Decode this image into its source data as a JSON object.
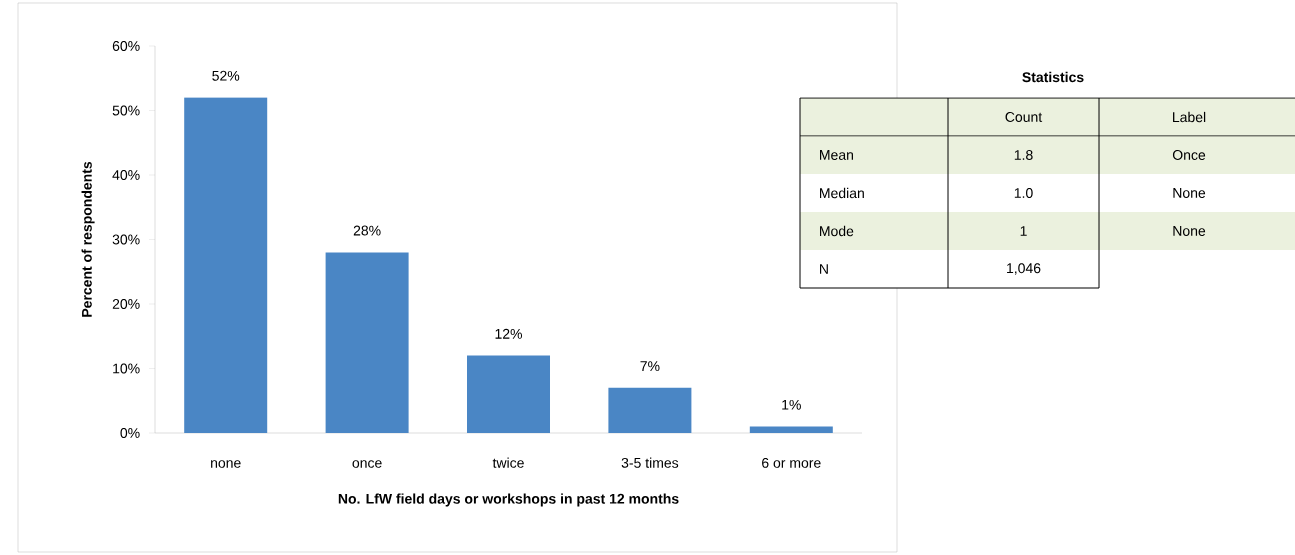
{
  "chart_data": [
    {
      "type": "bar",
      "xlabel": "No. LfW field days or workshops in past 12 months",
      "ylabel": "Percent of respondents",
      "categories": [
        "none",
        "once",
        "twice",
        "3-5 times",
        "6 or more"
      ],
      "values": [
        52,
        28,
        12,
        7,
        1
      ],
      "value_labels": [
        "52%",
        "28%",
        "12%",
        "7%",
        "1%"
      ],
      "color": "#4a86c5",
      "ylim": [
        0,
        60
      ],
      "yticks": [
        {
          "value": 0,
          "label": "0%"
        },
        {
          "value": 10,
          "label": "10%"
        },
        {
          "value": 20,
          "label": "20%"
        },
        {
          "value": 30,
          "label": "30%"
        },
        {
          "value": 40,
          "label": "40%"
        },
        {
          "value": 50,
          "label": "50%"
        },
        {
          "value": 60,
          "label": "60%"
        }
      ],
      "grid": false
    },
    {
      "type": "other",
      "title": "Statistics",
      "annotations": [
        "Count",
        "Label",
        "Mean",
        "1.8",
        "Once",
        "Median",
        "1.0",
        "None",
        "Mode",
        "1",
        "None",
        "N",
        "1,046"
      ]
    }
  ]
}
